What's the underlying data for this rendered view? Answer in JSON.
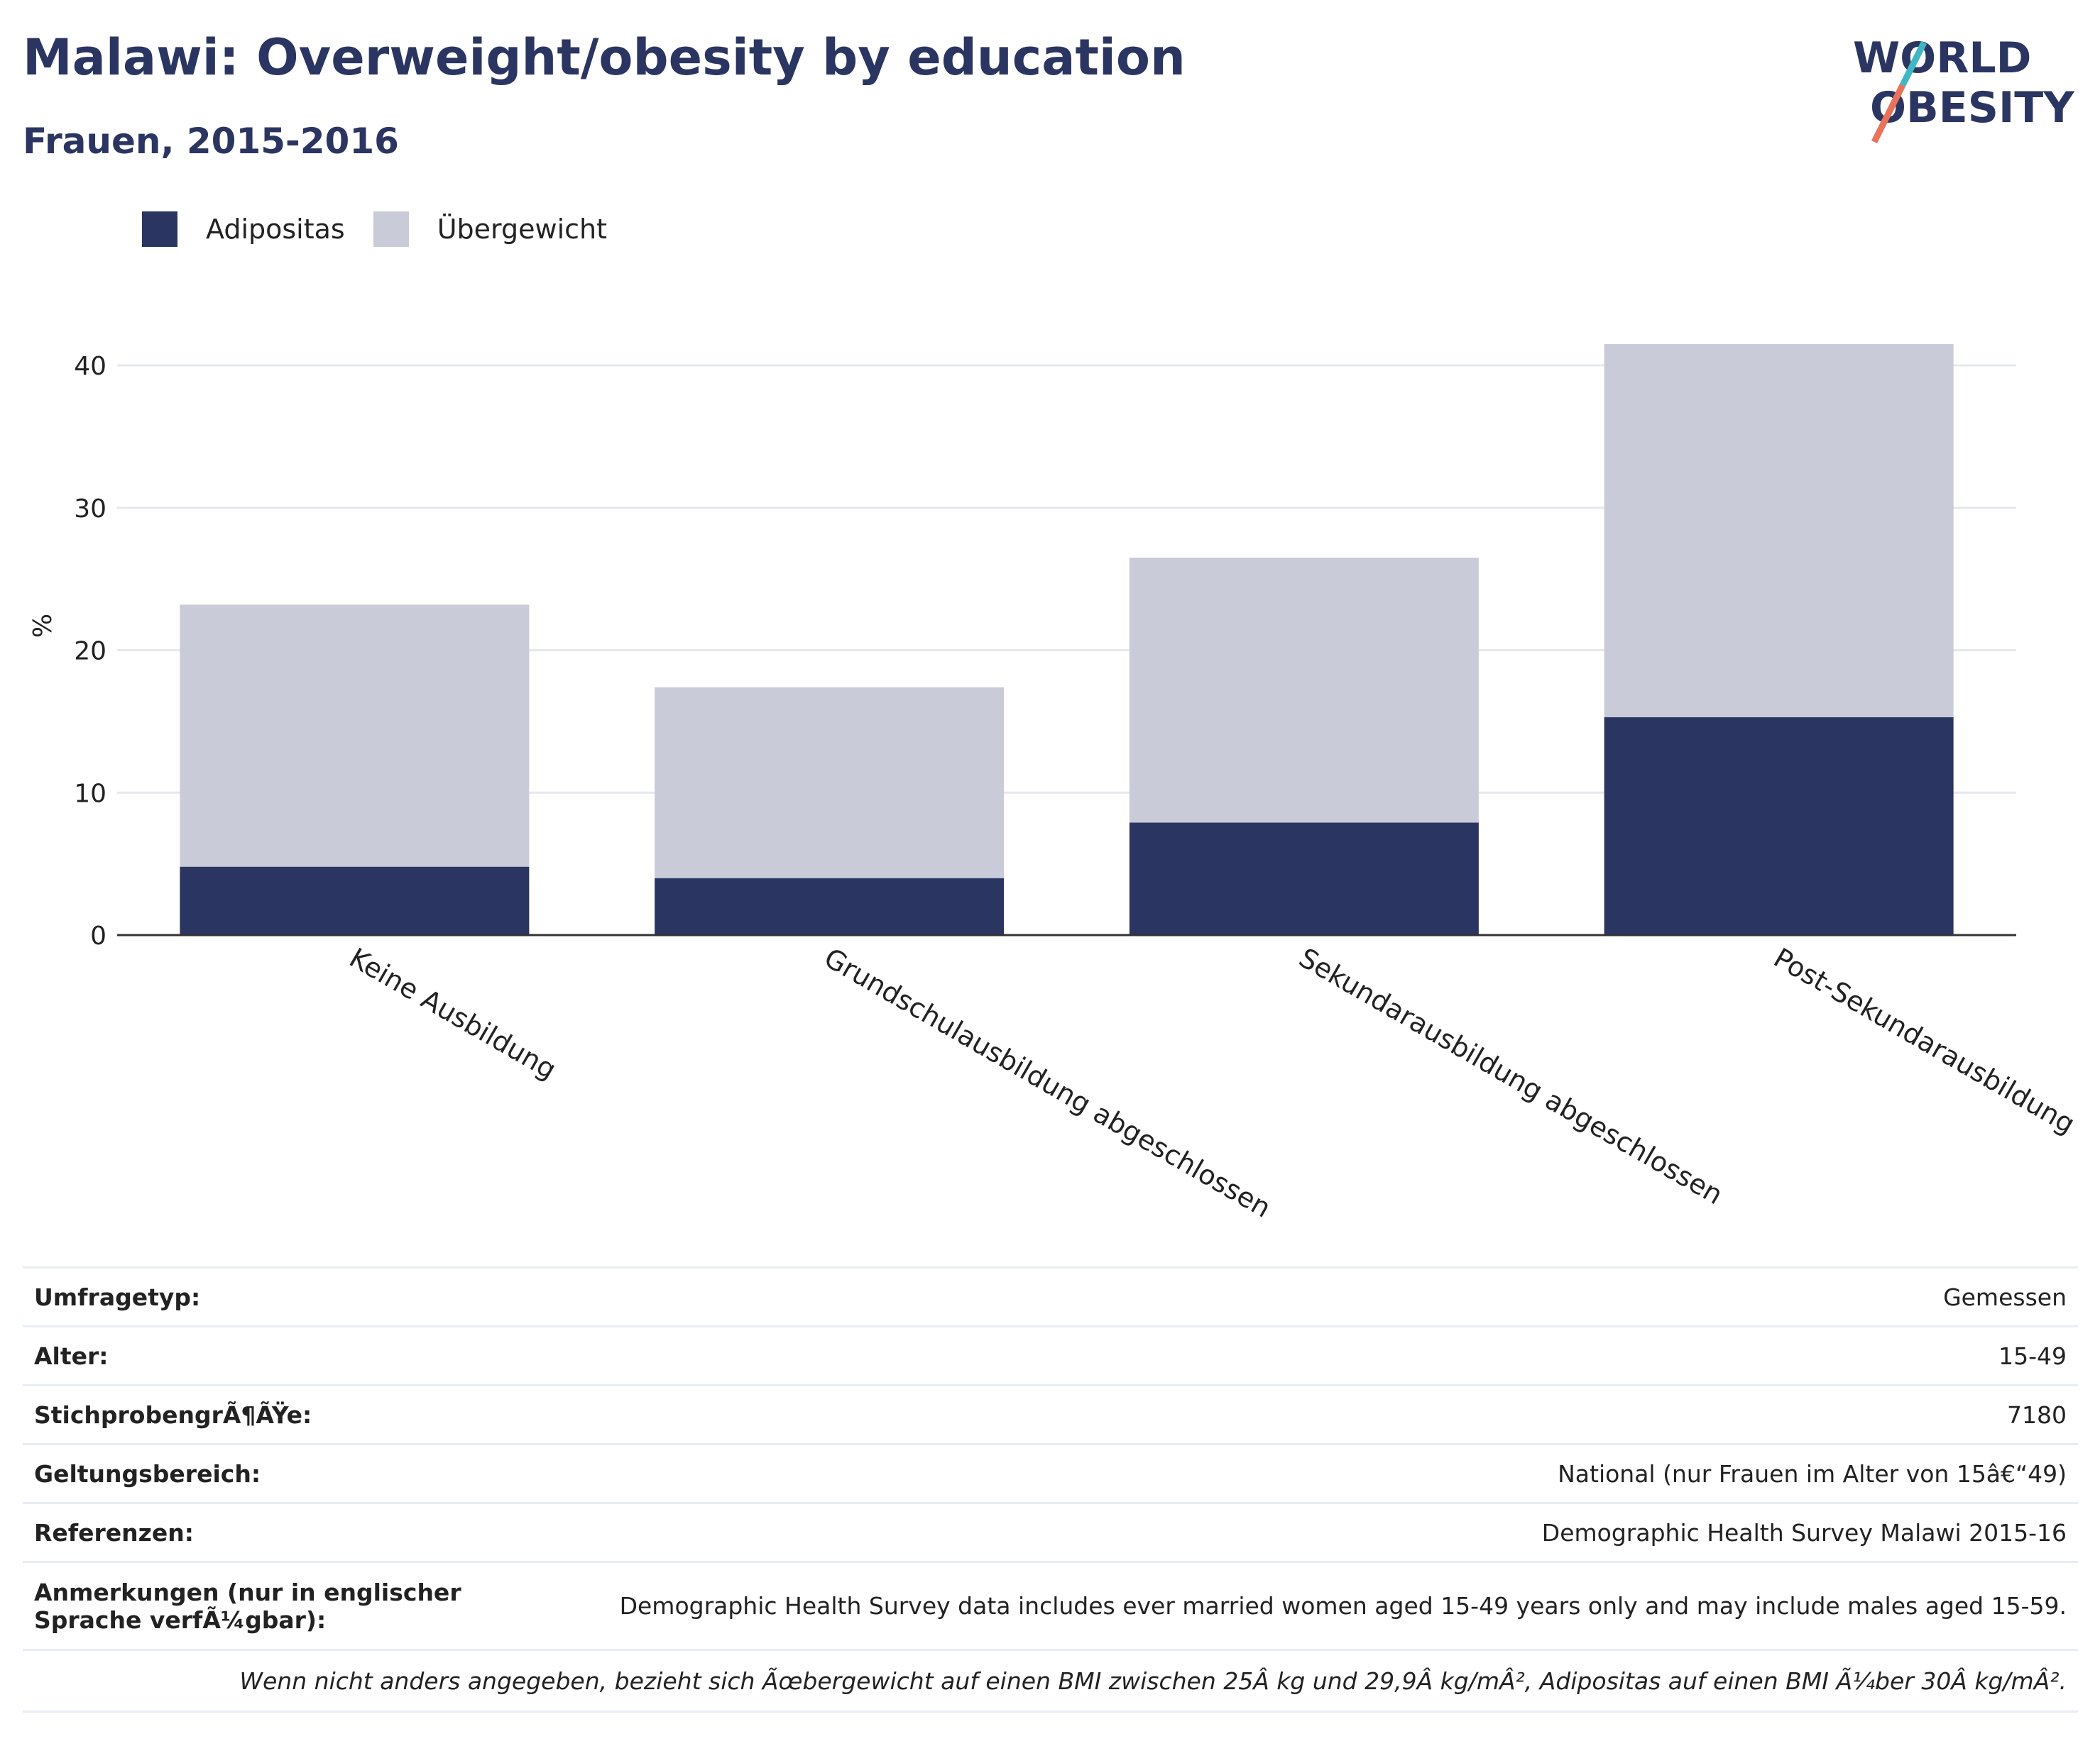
{
  "header": {
    "title": "Malawi: Overweight/obesity by education",
    "subtitle": "Frauen, 2015-2016"
  },
  "logo": {
    "line1": "WORLD",
    "line2": "OBESITY"
  },
  "colors": {
    "obesity": "#2b3561",
    "overweight": "#c9ccd8",
    "text": "#2b3561",
    "grid": "#e6e8ee",
    "axis": "#333333"
  },
  "chart_data": {
    "type": "bar",
    "stacked": true,
    "categories": [
      "Keine Ausbildung",
      "Grundschulausbildung abgeschlossen",
      "Sekundarausbildung abgeschlossen",
      "Post-Sekundarausbildung"
    ],
    "series": [
      {
        "name": "Adipositas",
        "values": [
          4.8,
          4.0,
          7.9,
          15.3
        ]
      },
      {
        "name": "Übergewicht",
        "values": [
          18.4,
          13.4,
          18.6,
          26.2
        ]
      }
    ],
    "ylabel": "%",
    "xlabel": "",
    "ylim": [
      0,
      43
    ],
    "yticks": [
      0,
      10,
      20,
      30,
      40
    ],
    "grid": true,
    "legend_position": "top-left"
  },
  "info": {
    "rows": [
      {
        "key": "Umfragetyp:",
        "value": "Gemessen"
      },
      {
        "key": "Alter:",
        "value": "15-49"
      },
      {
        "key": "StichprobengrÃ¶ÃŸe:",
        "value": "7180"
      },
      {
        "key": "Geltungsbereich:",
        "value": "National (nur Frauen im Alter von 15â€“49)"
      },
      {
        "key": "Referenzen:",
        "value": "Demographic Health Survey Malawi 2015-16"
      },
      {
        "key": "Anmerkungen (nur in englischer Sprache verfÃ¼gbar):",
        "value": "Demographic Health Survey data includes ever married women aged 15-49 years only and may include males aged 15-59."
      }
    ],
    "note": "Wenn nicht anders angegeben, bezieht sich Ãœbergewicht auf einen BMI zwischen 25Â kg und 29,9Â kg/mÂ², Adipositas auf einen BMI Ã¼ber 30Â kg/mÂ²."
  }
}
